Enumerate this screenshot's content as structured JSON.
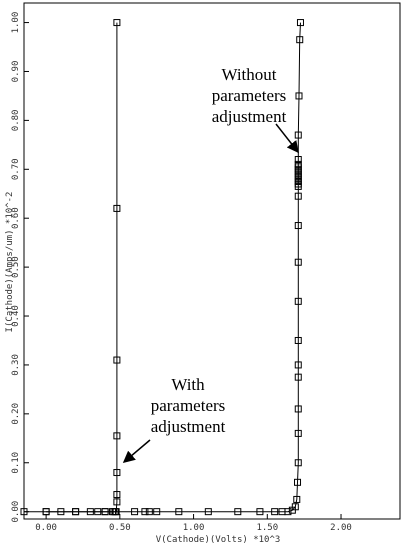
{
  "chart_data": {
    "type": "line",
    "title": "",
    "xlabel": "V(Cathode)(Volts) *10^3",
    "ylabel": "I(Cathode)(Amps/um) *10^-2",
    "xlim": [
      -0.15,
      2.4
    ],
    "ylim": [
      -0.015,
      1.04
    ],
    "xticks": [
      "0.00",
      "0.50",
      "1.00",
      "1.50",
      "2.00"
    ],
    "yticks": [
      "0.00",
      "0.10",
      "0.20",
      "0.30",
      "0.40",
      "0.50",
      "0.60",
      "0.70",
      "0.80",
      "0.90",
      "1.00"
    ],
    "grid": false,
    "series": [
      {
        "x": [
          -0.15,
          0.0,
          0.1,
          0.2,
          0.3,
          0.35,
          0.4,
          0.45,
          0.46,
          0.47,
          0.475,
          0.48,
          0.48,
          0.48,
          0.48,
          0.48,
          0.48,
          0.48
        ],
        "y": [
          0.0,
          0.0,
          0.0,
          0.0,
          0.0,
          0.0,
          0.0,
          0.0,
          0.0,
          0.0,
          0.0,
          0.02,
          0.035,
          0.08,
          0.155,
          0.31,
          0.62,
          1.0
        ]
      },
      {
        "x": [
          0.0,
          0.2,
          0.4,
          0.6,
          0.67,
          0.7,
          0.75,
          0.9,
          1.1,
          1.3,
          1.45,
          1.55,
          1.6,
          1.64,
          1.67,
          1.69,
          1.7,
          1.705,
          1.71,
          1.71,
          1.71,
          1.71,
          1.71,
          1.71,
          1.71,
          1.71,
          1.71,
          1.71,
          1.71,
          1.71,
          1.71,
          1.71,
          1.71,
          1.71,
          1.71,
          1.71,
          1.71,
          1.71,
          1.71,
          1.71,
          1.715,
          1.72,
          1.725
        ],
        "y": [
          0.0,
          0.0,
          0.0,
          0.0,
          0.0,
          0.0,
          0.0,
          0.0,
          0.0,
          0.0,
          0.0,
          0.0,
          0.0,
          0.0,
          0.003,
          0.01,
          0.025,
          0.06,
          0.1,
          0.16,
          0.21,
          0.275,
          0.3,
          0.35,
          0.43,
          0.51,
          0.585,
          0.645,
          0.665,
          0.67,
          0.675,
          0.68,
          0.685,
          0.69,
          0.695,
          0.7,
          0.705,
          0.71,
          0.72,
          0.77,
          0.85,
          0.965,
          1.0
        ]
      }
    ],
    "annotations": [
      {
        "lines": [
          "Without",
          "parameters",
          "adjustment"
        ]
      },
      {
        "lines": [
          "With",
          "parameters",
          "adjustment"
        ]
      }
    ]
  }
}
